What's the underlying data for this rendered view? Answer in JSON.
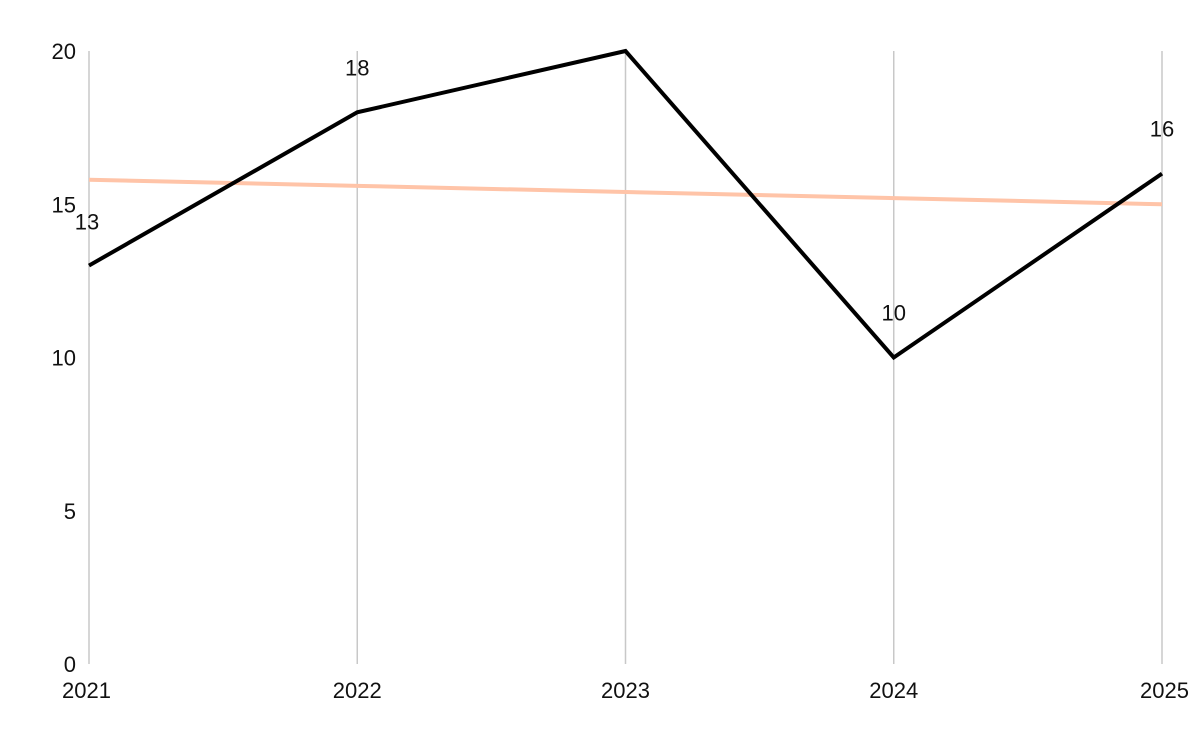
{
  "chart_data": {
    "type": "line",
    "title": "",
    "xlabel": "",
    "ylabel": "",
    "categories": [
      "2021",
      "2022",
      "2023",
      "2024",
      "2025"
    ],
    "ylim": [
      0,
      20
    ],
    "yticks": [
      "0",
      "5",
      "10",
      "15",
      "20"
    ],
    "grid": "vertical",
    "legend": "none",
    "series": [
      {
        "values": [
          13,
          18,
          20,
          10,
          16
        ],
        "color": "#000000",
        "data_labels": [
          "13",
          "18",
          "",
          "10",
          "16"
        ]
      },
      {
        "kind": "trendline",
        "values": [
          15.8,
          15.6,
          15.4,
          15.2,
          15.0
        ],
        "color": "#ffc4a8"
      }
    ]
  }
}
